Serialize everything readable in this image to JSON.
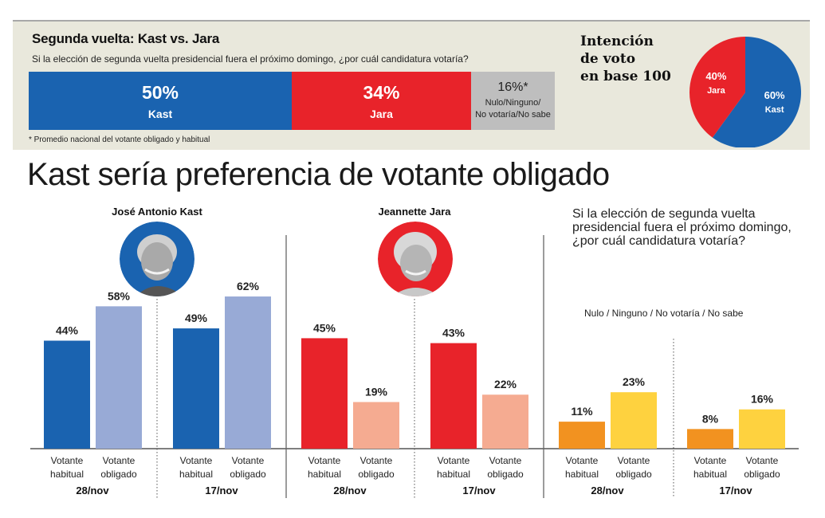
{
  "top_panel": {
    "title": "Segunda vuelta: Kast vs. Jara",
    "question": "Si la elección de segunda vuelta presidencial fuera el próximo domingo, ¿por cuál candidatura votaría?",
    "segments": [
      {
        "pct_label": "50%",
        "label": "Kast",
        "value": 50,
        "color": "#1a63b0"
      },
      {
        "pct_label": "34%",
        "label": "Jara",
        "value": 34,
        "color": "#e8232a"
      },
      {
        "pct_label": "16%*",
        "label_line1": "Nulo/Ninguno/",
        "label_line2": "No votaría/No sabe",
        "value": 16,
        "color": "#bebebe"
      }
    ],
    "footnote": "* Promedio nacional del votante obligado y habitual"
  },
  "pie_panel": {
    "title_lines": [
      "Intención",
      "de voto",
      "en base 100"
    ]
  },
  "headline": "Kast sería preferencia de votante obligado",
  "right_question": "Si la elección de segunda vuelta presidencial fuera el próximo domingo, ¿por cuál candidatura votaría?",
  "nulo_label": "Nulo / Ninguno / No votaría / No sabe",
  "candidates": [
    {
      "name": "José Antonio Kast",
      "avatar_color": "#1a63b0"
    },
    {
      "name": "Jeannette Jara",
      "avatar_color": "#e8232a"
    }
  ],
  "colors": {
    "kast_habitual": "#1a63b0",
    "kast_obligado": "#98aad6",
    "jara_habitual": "#e8232a",
    "jara_obligado": "#f5ab91",
    "nulo_habitual": "#f29220",
    "nulo_obligado": "#fed23f"
  },
  "chart_data": [
    {
      "type": "bar",
      "title": "Segunda vuelta: Kast vs. Jara (stacked 100%)",
      "categories": [
        "Kast",
        "Jara",
        "Nulo/Ninguno/No votaría/No sabe"
      ],
      "values": [
        50,
        34,
        16
      ],
      "unit": "%"
    },
    {
      "type": "pie",
      "title": "Intención de voto en base 100",
      "categories": [
        "Kast",
        "Jara"
      ],
      "values": [
        60,
        40
      ],
      "labels": [
        "60%",
        "40%"
      ]
    },
    {
      "type": "bar",
      "title": "Kast sería preferencia de votante obligado",
      "x_sublabels": [
        "Votante habitual",
        "Votante obligado"
      ],
      "groups": [
        {
          "panel": "José Antonio Kast",
          "date": "28/nov",
          "values": [
            44,
            58
          ],
          "labels": [
            "44%",
            "58%"
          ]
        },
        {
          "panel": "José Antonio Kast",
          "date": "17/nov",
          "values": [
            49,
            62
          ],
          "labels": [
            "49%",
            "62%"
          ]
        },
        {
          "panel": "Jeannette Jara",
          "date": "28/nov",
          "values": [
            45,
            19
          ],
          "labels": [
            "45%",
            "19%"
          ]
        },
        {
          "panel": "Jeannette Jara",
          "date": "17/nov",
          "values": [
            43,
            22
          ],
          "labels": [
            "43%",
            "22%"
          ]
        },
        {
          "panel": "Nulo / Ninguno / No votaría / No sabe",
          "date": "28/nov",
          "values": [
            11,
            23
          ],
          "labels": [
            "11%",
            "23%"
          ]
        },
        {
          "panel": "Nulo / Ninguno / No votaría / No sabe",
          "date": "17/nov",
          "values": [
            8,
            16
          ],
          "labels": [
            "8%",
            "16%"
          ]
        }
      ],
      "sublabel_lines": [
        [
          "Votante",
          "habitual"
        ],
        [
          "Votante",
          "obligado"
        ]
      ],
      "ylim": [
        0,
        100
      ],
      "grid": false,
      "unit": "%"
    }
  ]
}
